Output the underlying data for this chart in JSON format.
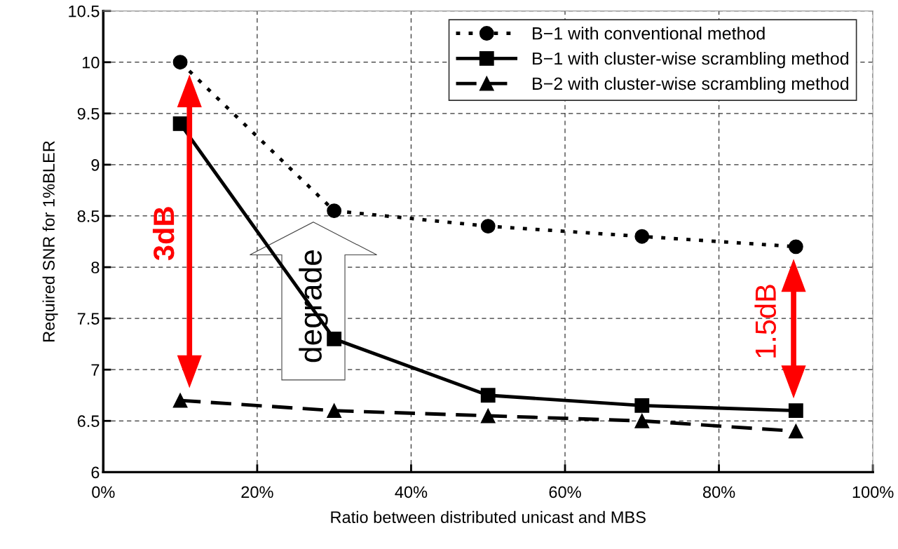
{
  "chart_data": {
    "type": "line",
    "xlabel": "Ratio between distributed unicast and MBS",
    "ylabel": "Required SNR for 1%BLER",
    "x": [
      10,
      30,
      50,
      70,
      90
    ],
    "xlim": [
      0,
      100
    ],
    "xticks": [
      {
        "value": 0,
        "label": "0%"
      },
      {
        "value": 20,
        "label": "20%"
      },
      {
        "value": 40,
        "label": "40%"
      },
      {
        "value": 60,
        "label": "60%"
      },
      {
        "value": 80,
        "label": "80%"
      },
      {
        "value": 100,
        "label": "100%"
      }
    ],
    "ylim": [
      6,
      10.5
    ],
    "yticks": [
      6,
      6.5,
      7,
      7.5,
      8,
      8.5,
      9,
      9.5,
      10,
      10.5
    ],
    "series": [
      {
        "name": "B−1 with conventional method",
        "color": "#000000",
        "values": [
          10.0,
          8.55,
          8.4,
          8.3,
          8.2
        ],
        "marker": "circle",
        "line_style": "dotted"
      },
      {
        "name": "B−1 with cluster-wise scrambling method",
        "color": "#000000",
        "values": [
          9.4,
          7.3,
          6.75,
          6.65,
          6.6
        ],
        "marker": "square",
        "line_style": "solid"
      },
      {
        "name": "B−2 with cluster-wise scrambling method",
        "color": "#000000",
        "values": [
          6.7,
          6.6,
          6.55,
          6.5,
          6.4
        ],
        "marker": "triangle",
        "line_style": "dashed"
      }
    ],
    "annotations": [
      "3dB",
      "degrade",
      "1.5dB"
    ],
    "grid": true,
    "legend": "top right"
  }
}
